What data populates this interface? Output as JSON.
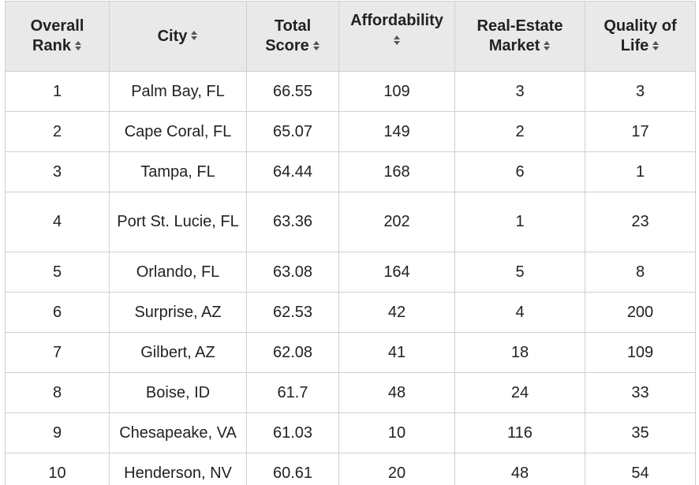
{
  "table": {
    "headers": [
      {
        "top": "Overall",
        "bottom": "Rank",
        "name": "rank"
      },
      {
        "top": "",
        "bottom": "City",
        "name": "city"
      },
      {
        "top": "Total",
        "bottom": "Score",
        "name": "total-score"
      },
      {
        "top": "Affordability",
        "bottom": "",
        "name": "affordability"
      },
      {
        "top": "Real-Estate",
        "bottom": "Market",
        "name": "real-estate-market"
      },
      {
        "top": "Quality of",
        "bottom": "Life",
        "name": "quality-of-life"
      }
    ],
    "sort_icon": "sort-up-down-icon",
    "rows": [
      {
        "rank": "1",
        "city": "Palm Bay, FL",
        "score": "66.55",
        "affordability": "109",
        "market": "3",
        "quality": "3"
      },
      {
        "rank": "2",
        "city": "Cape Coral, FL",
        "score": "65.07",
        "affordability": "149",
        "market": "2",
        "quality": "17"
      },
      {
        "rank": "3",
        "city": "Tampa, FL",
        "score": "64.44",
        "affordability": "168",
        "market": "6",
        "quality": "1"
      },
      {
        "rank": "4",
        "city": "Port St. Lucie, FL",
        "score": "63.36",
        "affordability": "202",
        "market": "1",
        "quality": "23"
      },
      {
        "rank": "5",
        "city": "Orlando, FL",
        "score": "63.08",
        "affordability": "164",
        "market": "5",
        "quality": "8"
      },
      {
        "rank": "6",
        "city": "Surprise, AZ",
        "score": "62.53",
        "affordability": "42",
        "market": "4",
        "quality": "200"
      },
      {
        "rank": "7",
        "city": "Gilbert, AZ",
        "score": "62.08",
        "affordability": "41",
        "market": "18",
        "quality": "109"
      },
      {
        "rank": "8",
        "city": "Boise, ID",
        "score": "61.7",
        "affordability": "48",
        "market": "24",
        "quality": "33"
      },
      {
        "rank": "9",
        "city": "Chesapeake, VA",
        "score": "61.03",
        "affordability": "10",
        "market": "116",
        "quality": "35"
      },
      {
        "rank": "10",
        "city": "Henderson, NV",
        "score": "60.61",
        "affordability": "20",
        "market": "48",
        "quality": "54"
      }
    ]
  },
  "colors": {
    "header_bg": "#e9e9e9",
    "border": "#cfcfcf",
    "text": "#222222",
    "sort_icon": "#555555"
  }
}
